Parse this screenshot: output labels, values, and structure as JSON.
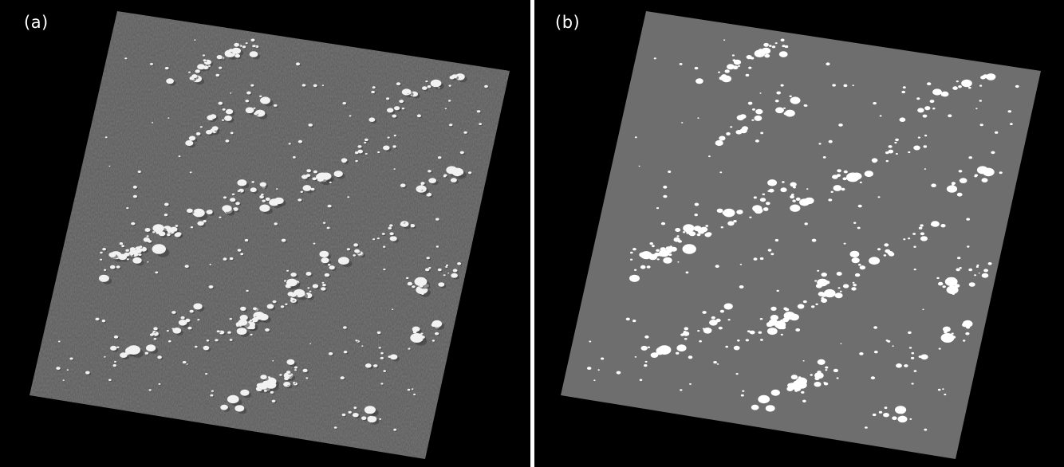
{
  "figure": {
    "panels": [
      {
        "label": "(a)",
        "style": "raw-scene",
        "scene_color": "#7a7a7a",
        "cloud_color": "#ffffff"
      },
      {
        "label": "(b)",
        "style": "cloud-mask",
        "scene_color": "#6e6e6e",
        "cloud_color": "#ffffff"
      }
    ],
    "background_color": "#000000",
    "divider_color": "#ffffff"
  }
}
